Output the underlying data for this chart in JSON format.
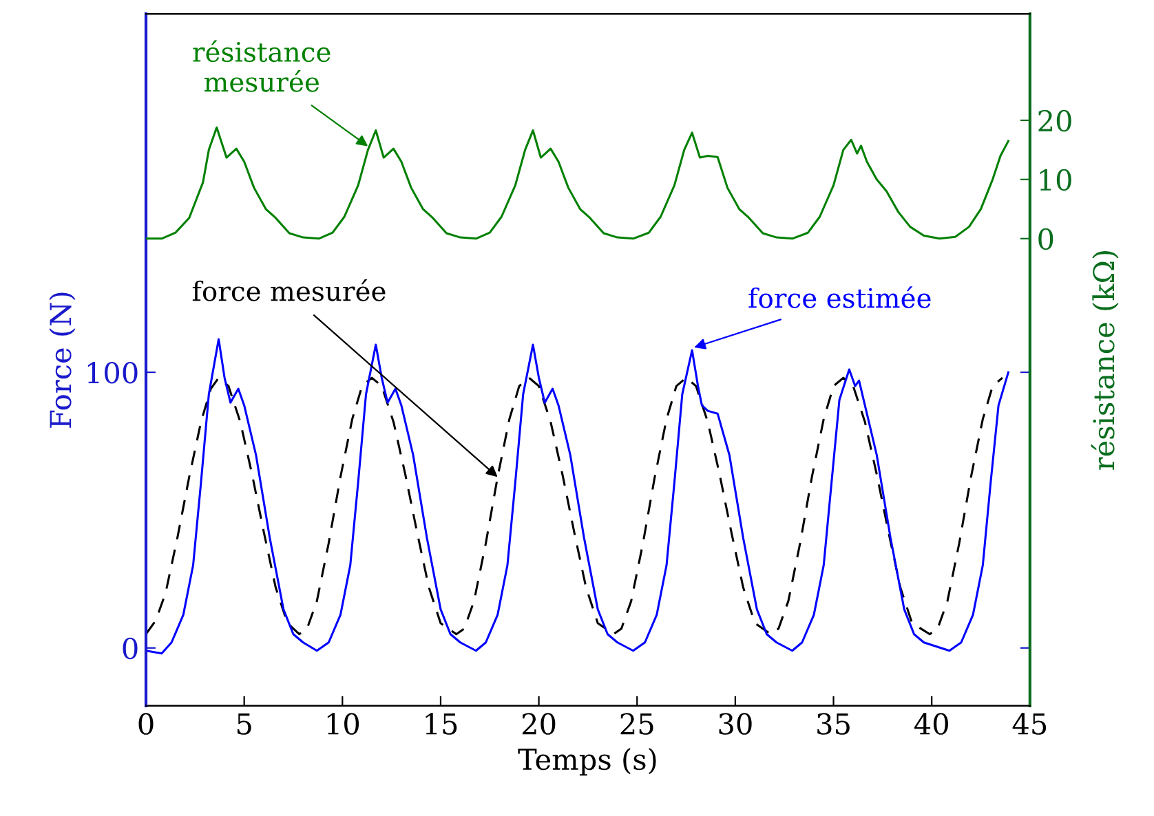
{
  "chart_data": {
    "type": "line",
    "xlabel": "Temps (s)",
    "ylabel": "Force (N)",
    "y2label": "résistance (kΩ)",
    "xlim": [
      0,
      45
    ],
    "xticks": [
      0,
      5,
      10,
      15,
      20,
      25,
      30,
      35,
      40,
      45
    ],
    "ylim": [
      -21,
      230
    ],
    "yticks": [
      0,
      100
    ],
    "y2lim": [
      -79,
      38
    ],
    "y2ticks": [
      0,
      10,
      20
    ],
    "grid": false,
    "legend": false,
    "series": [
      {
        "color": "#008000",
        "axis": "y2",
        "line_style": "solid",
        "x": [
          0,
          0.8,
          1.5,
          2.2,
          2.9,
          3.2,
          3.6,
          4.1,
          4.6,
          5.0,
          5.5,
          6.1,
          6.6,
          7.3,
          8.0,
          8.8,
          9.5,
          10.1,
          10.8,
          11.3,
          11.7,
          12.1,
          12.6,
          13.0,
          13.5,
          14.1,
          14.6,
          15.3,
          16.0,
          16.8,
          17.5,
          18.1,
          18.8,
          19.3,
          19.7,
          20.1,
          20.6,
          21.0,
          21.5,
          22.1,
          22.6,
          23.3,
          24.0,
          24.8,
          25.6,
          26.2,
          26.9,
          27.4,
          27.8,
          28.2,
          28.6,
          29.1,
          29.6,
          30.2,
          30.7,
          31.4,
          32.1,
          32.9,
          33.7,
          34.3,
          35.0,
          35.5,
          35.9,
          36.2,
          36.4,
          36.7,
          37.2,
          37.7,
          38.3,
          38.9,
          39.6,
          40.4,
          41.2,
          41.9,
          42.5,
          43.1,
          43.5,
          43.9
        ],
        "values": [
          0,
          0,
          1,
          3.5,
          9.5,
          15,
          18.8,
          13.7,
          15.2,
          13,
          8.6,
          5,
          3.5,
          0.9,
          0.2,
          0,
          1,
          3.7,
          9,
          15,
          18.3,
          13.7,
          15.2,
          13,
          8.6,
          5,
          3.5,
          0.9,
          0.2,
          0,
          1,
          3.7,
          9,
          15,
          18.3,
          13.7,
          15.2,
          13,
          8.6,
          5,
          3.5,
          0.9,
          0.2,
          0,
          1,
          3.7,
          9,
          15,
          17.9,
          13.7,
          14,
          13.8,
          8.6,
          5,
          3.5,
          0.9,
          0.2,
          0,
          1,
          3.7,
          9,
          15,
          16.7,
          14.4,
          15.7,
          13,
          10,
          8,
          4.5,
          2,
          0.5,
          0,
          0.3,
          2,
          5,
          10,
          14,
          16.5
        ]
      },
      {
        "color": "#000000",
        "line_style": "dashed",
        "x": [
          0,
          0.5,
          1.0,
          1.6,
          2.2,
          2.8,
          3.3,
          3.7,
          4.2,
          4.8,
          5.4,
          6.0,
          6.6,
          7.2,
          7.8,
          8.2,
          8.7,
          9.3,
          9.9,
          10.5,
          11.0,
          11.5,
          12.0,
          12.6,
          13.2,
          13.8,
          14.4,
          15.0,
          15.8,
          16.2,
          16.7,
          17.3,
          17.9,
          18.5,
          19.0,
          19.5,
          20.0,
          20.6,
          21.2,
          21.8,
          22.4,
          23.0,
          23.8,
          24.2,
          24.7,
          25.3,
          25.9,
          26.5,
          27.0,
          27.5,
          28.0,
          28.6,
          29.2,
          29.8,
          30.4,
          31.0,
          31.8,
          32.2,
          32.7,
          33.3,
          33.9,
          34.5,
          35.0,
          35.5,
          36.0,
          36.6,
          37.2,
          37.8,
          38.4,
          39.0,
          39.9,
          40.3,
          40.8,
          41.4,
          42.0,
          42.6,
          43.1,
          43.6
        ],
        "values": [
          5,
          10,
          20,
          40,
          62,
          82,
          94,
          98,
          95,
          82,
          63,
          42,
          22,
          9,
          5,
          7,
          17,
          38,
          62,
          83,
          95,
          98,
          95,
          82,
          63,
          42,
          22,
          9,
          5,
          7,
          17,
          38,
          62,
          83,
          95,
          98,
          95,
          82,
          63,
          42,
          22,
          9,
          5,
          7,
          17,
          38,
          62,
          83,
          95,
          98,
          95,
          82,
          63,
          42,
          22,
          9,
          5,
          7,
          17,
          38,
          62,
          83,
          95,
          98,
          95,
          82,
          63,
          42,
          22,
          9,
          5,
          7,
          17,
          38,
          62,
          83,
          95,
          98
        ]
      },
      {
        "color": "#0000ff",
        "line_style": "solid",
        "x": [
          0,
          0.8,
          1.3,
          1.9,
          2.4,
          2.8,
          3.2,
          3.7,
          4.0,
          4.3,
          4.7,
          5.0,
          5.6,
          6.3,
          7.0,
          7.5,
          8.0,
          8.7,
          9.3,
          9.9,
          10.4,
          10.8,
          11.2,
          11.7,
          12.0,
          12.3,
          12.7,
          13.0,
          13.6,
          14.3,
          15.0,
          15.5,
          16.0,
          16.8,
          17.3,
          17.9,
          18.4,
          18.8,
          19.2,
          19.7,
          20.0,
          20.3,
          20.7,
          21.0,
          21.6,
          22.3,
          23.0,
          23.5,
          24.0,
          24.8,
          25.4,
          26.0,
          26.5,
          26.9,
          27.3,
          27.8,
          28.1,
          28.3,
          28.6,
          29.1,
          29.7,
          30.4,
          31.1,
          31.6,
          32.1,
          32.9,
          33.4,
          34.0,
          34.5,
          34.9,
          35.3,
          35.8,
          36.1,
          36.3,
          36.6,
          37.2,
          37.9,
          38.6,
          39.1,
          39.6,
          40.9,
          41.5,
          42.1,
          42.6,
          43.0,
          43.4,
          43.9
        ],
        "values": [
          -1,
          -2,
          2,
          12,
          30,
          60,
          92,
          112,
          98,
          89,
          94,
          88,
          70,
          40,
          14,
          5,
          2,
          -1,
          2,
          12,
          30,
          60,
          92,
          110,
          98,
          89,
          94,
          88,
          70,
          40,
          14,
          5,
          2,
          -1,
          2,
          12,
          30,
          60,
          92,
          110,
          98,
          89,
          94,
          88,
          70,
          40,
          14,
          5,
          2,
          -1,
          2,
          12,
          30,
          60,
          92,
          108,
          95,
          88,
          86,
          85,
          70,
          40,
          14,
          5,
          2,
          -1,
          2,
          12,
          30,
          60,
          90,
          101,
          95,
          97,
          88,
          70,
          40,
          14,
          5,
          2,
          -1,
          2,
          12,
          30,
          60,
          88,
          100
        ]
      }
    ],
    "annotations": [
      {
        "text": "résistance\nmesurée",
        "x": 11.3,
        "y": 182
      },
      {
        "text": "force mesurée",
        "x": 17.9,
        "y": 62
      },
      {
        "text": "force estimée",
        "x": 27.9,
        "y": 109
      }
    ]
  }
}
